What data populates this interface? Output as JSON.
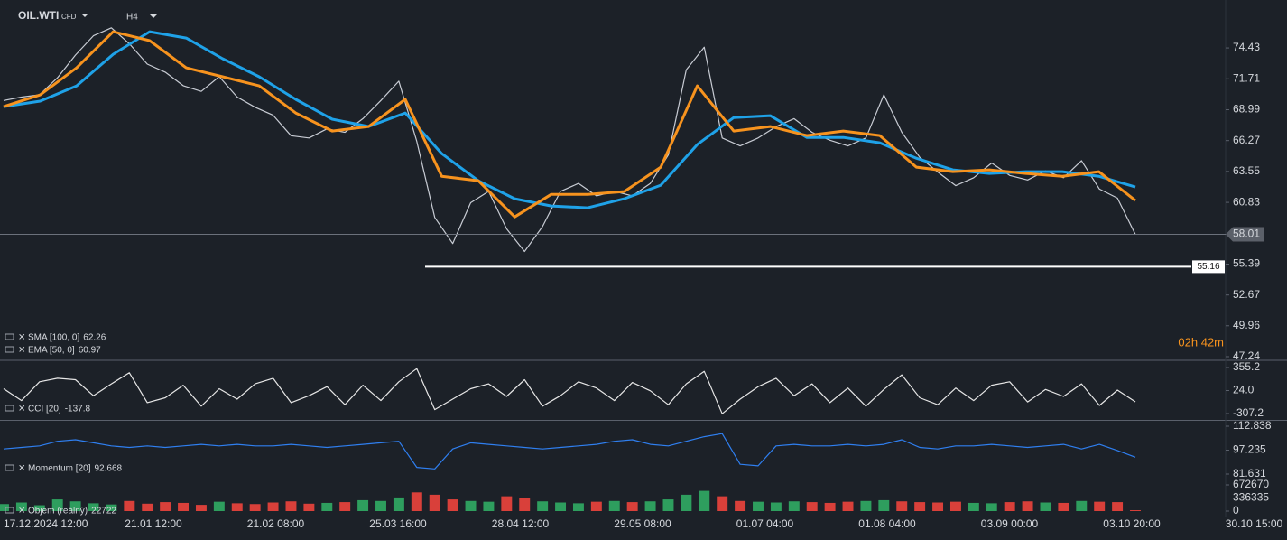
{
  "header": {
    "symbol": "OIL.WTI",
    "instrument_type": "CFD",
    "timeframe": "H4"
  },
  "x_axis_labels": [
    "17.12.2024  12:00",
    "21.01  12:00",
    "21.02  08:00",
    "25.03  16:00",
    "28.04  12:00",
    "29.05  08:00",
    "01.07  04:00",
    "01.08  04:00",
    "03.09  00:00",
    "03.10  20:00",
    "30.10  15:00"
  ],
  "chart_data": [
    {
      "type": "line",
      "series": [
        {
          "color": "#c8ccd4",
          "values": [
            69.8,
            70.1,
            70.3,
            71.8,
            73.8,
            75.5,
            76.2,
            74.8,
            73.0,
            72.3,
            71.1,
            70.6,
            71.9,
            70.1,
            69.2,
            68.5,
            66.7,
            66.5,
            67.3,
            67.0,
            68.2,
            69.8,
            71.5,
            66.2,
            59.5,
            57.2,
            60.8,
            61.8,
            58.5,
            56.5,
            58.7,
            61.8,
            62.5,
            61.4,
            61.8,
            61.4,
            62.5,
            65.0,
            72.5,
            74.5,
            66.5,
            65.8,
            66.5,
            67.5,
            68.2,
            67.0,
            66.3,
            65.8,
            66.5,
            70.3,
            67.0,
            64.8,
            63.5,
            62.3,
            63.0,
            64.3,
            63.2,
            62.8,
            63.6,
            63.0,
            64.5,
            62.0,
            61.2,
            58.0
          ]
        },
        {
          "name": "SMA [100, 0]",
          "color": "#1fa2e8",
          "last_value": 62.26,
          "values": [
            69.26,
            69.74,
            71.09,
            73.87,
            75.86,
            75.3,
            73.48,
            71.89,
            69.9,
            68.15,
            67.51,
            68.7,
            65.12,
            62.74,
            61.15,
            60.51,
            60.35,
            61.15,
            62.34,
            65.92,
            68.3,
            68.46,
            66.55,
            66.55,
            66.08,
            64.72,
            63.69,
            63.37,
            63.53,
            63.53,
            63.13,
            62.18
          ]
        },
        {
          "name": "EMA [50, 0]",
          "color": "#f7931e",
          "last_value": 60.97,
          "values": [
            69.26,
            70.29,
            72.68,
            75.86,
            75.07,
            72.68,
            71.89,
            71.09,
            68.7,
            67.11,
            67.51,
            69.9,
            63.13,
            62.74,
            59.55,
            61.54,
            61.54,
            61.78,
            63.93,
            71.09,
            67.11,
            67.51,
            66.71,
            67.11,
            66.71,
            63.93,
            63.53,
            63.69,
            63.37,
            63.13,
            63.53,
            60.99
          ]
        }
      ],
      "ylim": [
        47.0,
        78.65
      ],
      "yticks": [
        74.43,
        71.71,
        68.99,
        66.27,
        63.55,
        60.83,
        55.39,
        52.67,
        49.96,
        47.24
      ],
      "current_price": 58.01,
      "horizontal_line": 55.16,
      "countdown": "02h 42m"
    },
    {
      "type": "line",
      "series": [
        {
          "name": "CCI [20]",
          "color": "#e6e6e6",
          "last_value": -137.8,
          "values": [
            50,
            -120,
            150,
            200,
            180,
            -50,
            120,
            280,
            -150,
            -80,
            100,
            -200,
            50,
            -100,
            120,
            200,
            -150,
            -50,
            80,
            -180,
            100,
            -120,
            150,
            340,
            -250,
            -100,
            50,
            120,
            -60,
            180,
            -200,
            -50,
            150,
            60,
            -120,
            140,
            20,
            -180,
            120,
            300,
            -310,
            -100,
            80,
            200,
            -50,
            120,
            -150,
            60,
            -200,
            40,
            250,
            -80,
            -180,
            60,
            -120,
            100,
            150,
            -140,
            40,
            -60,
            120,
            -190,
            30,
            -137.8
          ]
        }
      ],
      "ylim": [
        -398,
        446
      ],
      "yticks": [
        355.2,
        {
          "value": 24,
          "label": "24.0"
        },
        -307.2
      ]
    },
    {
      "type": "line",
      "series": [
        {
          "name": "Momentum [20]",
          "color": "#2f7ff0",
          "last_value": 92.668,
          "values": [
            98,
            99,
            100,
            103,
            104,
            102,
            100,
            99,
            100,
            99,
            100,
            101,
            100,
            101,
            100,
            100,
            101,
            100,
            99,
            100,
            101,
            102,
            103,
            86,
            85,
            98,
            102,
            101,
            100,
            99,
            98,
            99,
            100,
            101,
            103,
            104,
            101,
            100,
            103,
            106,
            108,
            88,
            87,
            100,
            101,
            100,
            100,
            101,
            100,
            101,
            104,
            99,
            98,
            100,
            100,
            101,
            100,
            99,
            100,
            101,
            98,
            101,
            97,
            92.668
          ]
        }
      ],
      "ylim": [
        78.69,
        116.37
      ],
      "yticks": [
        112.838,
        97.235,
        81.631
      ]
    },
    {
      "type": "bar",
      "series": [
        {
          "name": "Objem (reálný)",
          "color": "#2e9e5e",
          "down_color": "#d9403a",
          "last_value": 22722,
          "values": [
            180000,
            220000,
            150000,
            300000,
            250000,
            200000,
            170000,
            260000,
            190000,
            230000,
            210000,
            160000,
            240000,
            200000,
            180000,
            220000,
            250000,
            190000,
            210000,
            230000,
            280000,
            260000,
            350000,
            480000,
            420000,
            300000,
            260000,
            240000,
            380000,
            330000,
            250000,
            220000,
            200000,
            240000,
            260000,
            230000,
            250000,
            300000,
            420000,
            520000,
            380000,
            260000,
            240000,
            220000,
            250000,
            230000,
            210000,
            240000,
            260000,
            280000,
            250000,
            230000,
            220000,
            240000,
            210000,
            200000,
            230000,
            250000,
            220000,
            210000,
            260000,
            240000,
            230000,
            22722
          ]
        }
      ],
      "ylim": [
        0,
        811846
      ],
      "yticks": [
        672670,
        336335,
        0
      ]
    }
  ]
}
